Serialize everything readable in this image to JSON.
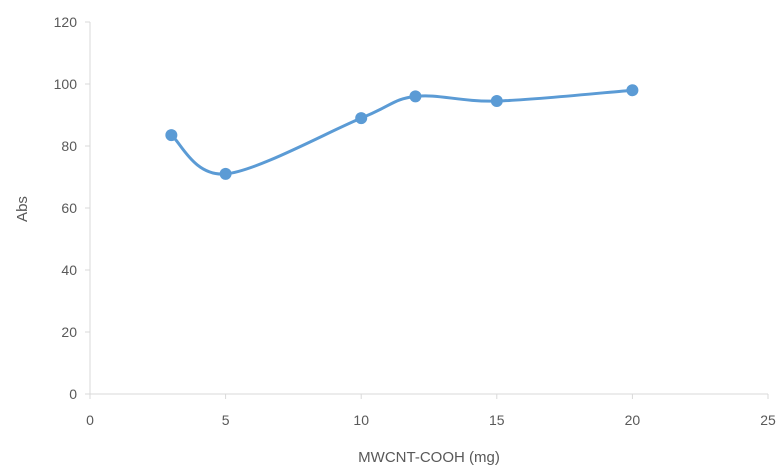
{
  "chart_data": {
    "type": "scatter",
    "title": "",
    "xlabel": "MWCNT-COOH  (mg)",
    "ylabel": "Abs",
    "xlim": [
      0,
      25
    ],
    "ylim": [
      0,
      120
    ],
    "x_ticks": [
      "0",
      "5",
      "10",
      "15",
      "20",
      "25"
    ],
    "y_ticks": [
      "0",
      "20",
      "40",
      "60",
      "80",
      "100",
      "120"
    ],
    "grid": false,
    "legend": "none",
    "smoothed": true,
    "series": [
      {
        "color": "#5b9bd5",
        "x": [
          3,
          5,
          10,
          12,
          15,
          20
        ],
        "y": [
          83.5,
          71,
          89,
          96,
          94.5,
          98
        ]
      }
    ]
  }
}
